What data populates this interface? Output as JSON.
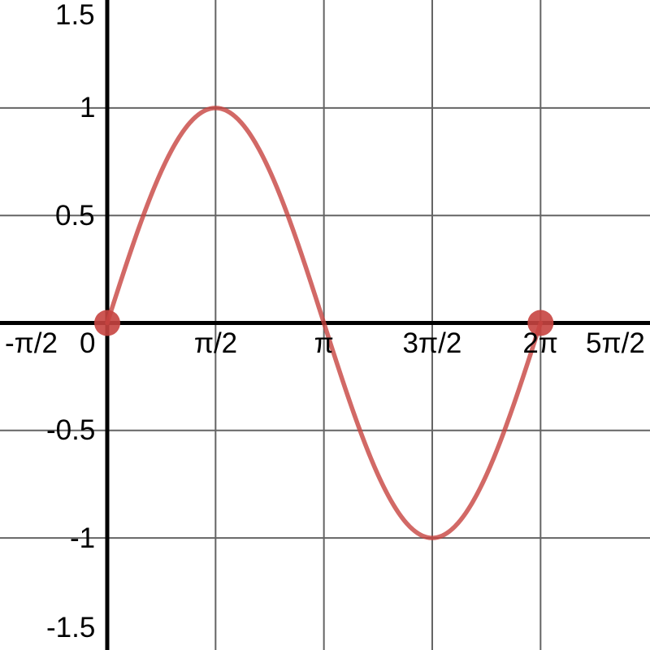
{
  "chart_data": {
    "type": "line",
    "title": "",
    "series": [
      {
        "name": "y = sin(x)",
        "function": "sin",
        "domain": [
          0,
          6.283185307
        ],
        "samples": 240
      }
    ],
    "points": [
      {
        "x": 0,
        "y": 0
      },
      {
        "x": 6.283185307,
        "y": 0
      }
    ],
    "x_ticks": [
      {
        "value": -1.570796327,
        "label": "-π/2"
      },
      {
        "value": 0,
        "label": "0"
      },
      {
        "value": 1.570796327,
        "label": "π/2"
      },
      {
        "value": 3.141592653,
        "label": "π"
      },
      {
        "value": 4.71238898,
        "label": "3π/2"
      },
      {
        "value": 6.283185307,
        "label": "2π"
      },
      {
        "value": 7.853981634,
        "label": "5π/2"
      }
    ],
    "y_ticks": [
      {
        "value": 1.5,
        "label": "1.5"
      },
      {
        "value": 1,
        "label": "1"
      },
      {
        "value": 0.5,
        "label": "0.5"
      },
      {
        "value": -0.5,
        "label": "-0.5"
      },
      {
        "value": -1,
        "label": "-1"
      },
      {
        "value": -1.5,
        "label": "-1.5"
      }
    ],
    "xlim": [
      -1.5551,
      7.8699
    ],
    "ylim": [
      -1.5212,
      1.5023
    ],
    "grid": true,
    "legend": false,
    "colors": {
      "curve": "#c74440",
      "point": "#c74440",
      "grid": "#646464",
      "axis": "#000000",
      "label": "#000000",
      "background": "#ffffff"
    },
    "curve_opacity": 0.8,
    "point_opacity": 0.9
  }
}
